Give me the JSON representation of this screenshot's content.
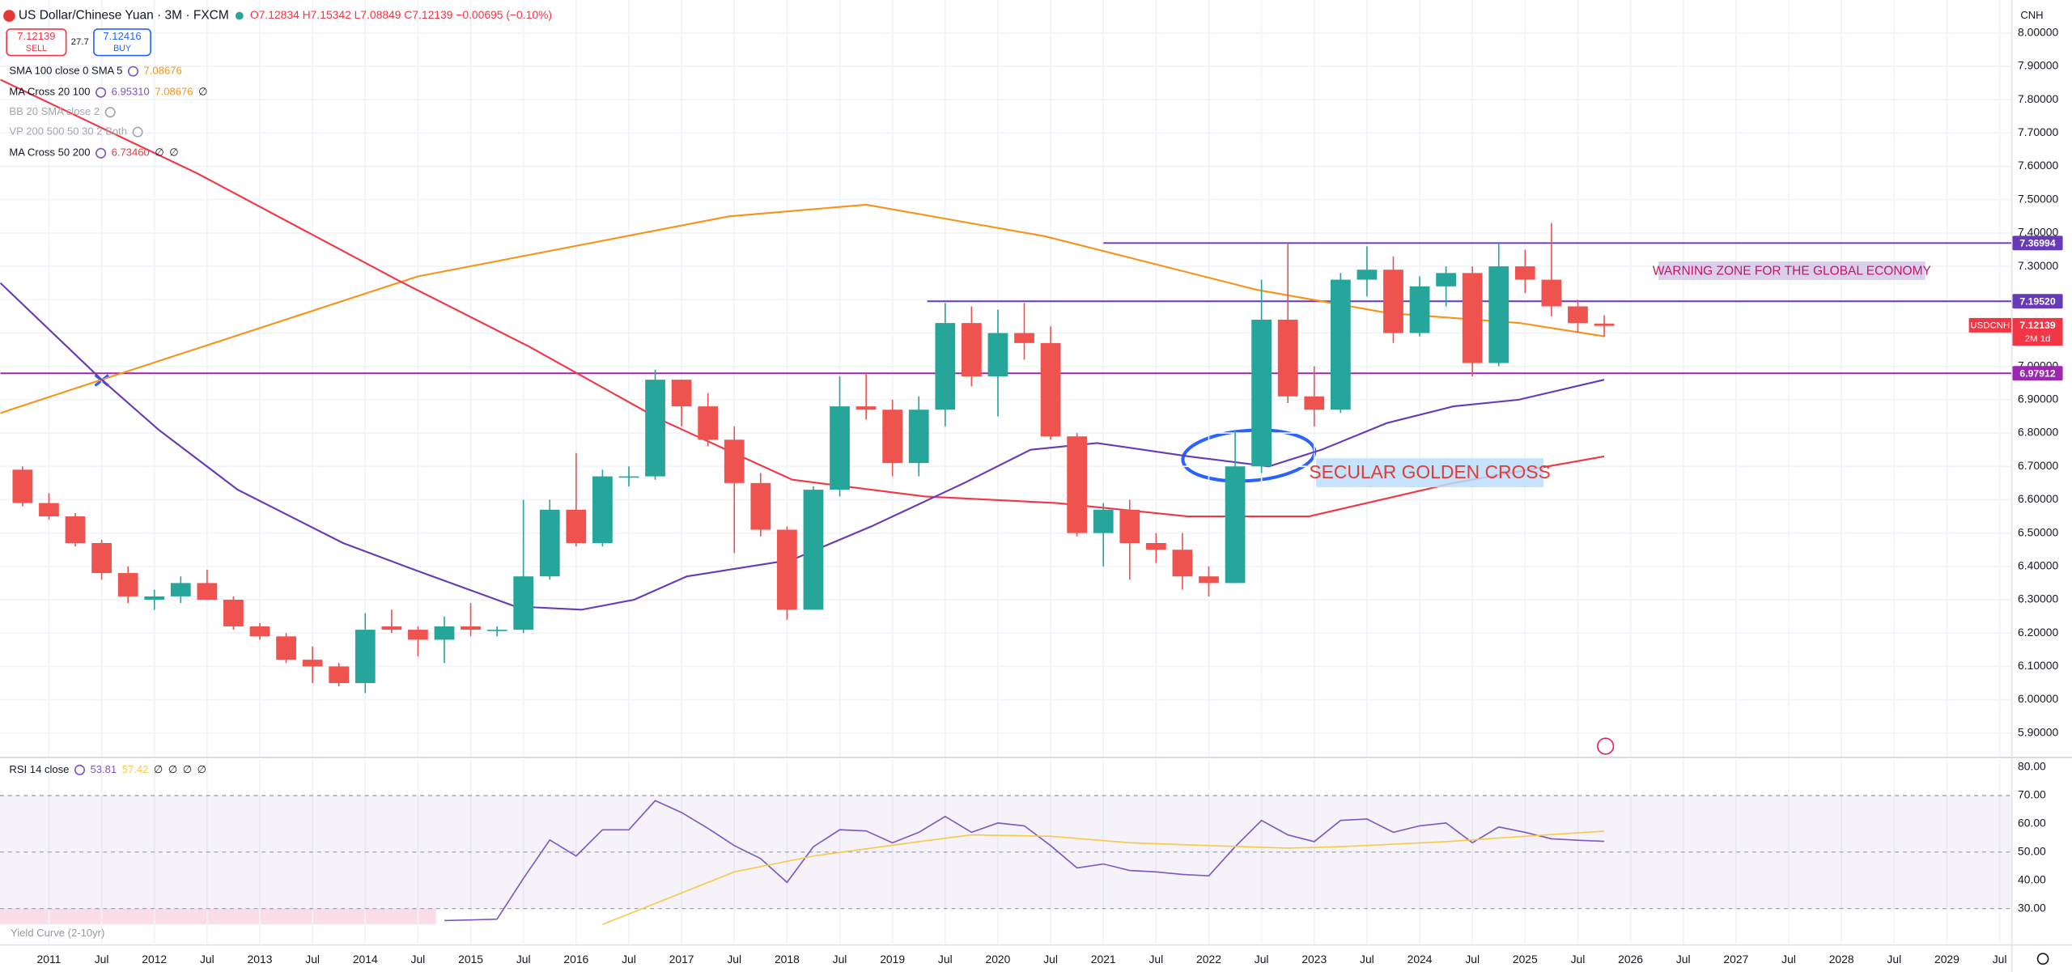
{
  "header": {
    "symbol": "US Dollar/Chinese Yuan · 3M · FXCM",
    "quote": "O7.12834 H7.15342 L7.08849 C7.12139 −0.00695 (−0.10%)",
    "sell_price": "7.12139",
    "sell": "SELL",
    "spread": "27.7",
    "buy_price": "7.12416",
    "buy": "BUY",
    "currency": "CNH"
  },
  "indicators": [
    {
      "name": "SMA 100 close 0 SMA 5",
      "values": [
        "7.08676"
      ],
      "colors": [
        "#f7931a"
      ]
    },
    {
      "name": "MA Cross 20 100",
      "values": [
        "6.95310",
        "7.08676",
        "∅"
      ],
      "colors": [
        "#7e57c2",
        "#f7931a",
        "#131722"
      ]
    },
    {
      "name": "BB 20 SMA close 2",
      "values": [],
      "colors": []
    },
    {
      "name": "VP 200 500 50 30 2 Both",
      "values": [],
      "colors": []
    },
    {
      "name": "MA Cross 50 200",
      "values": [
        "6.73460",
        "∅",
        "∅"
      ],
      "colors": [
        "#f23645",
        "#131722",
        "#131722"
      ]
    }
  ],
  "chart_data": [
    {
      "type": "candlestick",
      "x": [
        2010.75,
        2011.0,
        2011.25,
        2011.5,
        2011.75,
        2012.0,
        2012.25,
        2012.5,
        2012.75,
        2013.0,
        2013.25,
        2013.5,
        2013.75,
        2014.0,
        2014.25,
        2014.5,
        2014.75,
        2015.0,
        2015.25,
        2015.5,
        2015.75,
        2016.0,
        2016.25,
        2016.5,
        2016.75,
        2017.0,
        2017.25,
        2017.5,
        2017.75,
        2018.0,
        2018.25,
        2018.5,
        2018.75,
        2019.0,
        2019.25,
        2019.5,
        2019.75,
        2020.0,
        2020.25,
        2020.5,
        2020.75,
        2021.0,
        2021.25,
        2021.5,
        2021.75,
        2022.0,
        2022.25,
        2022.5,
        2022.75,
        2023.0,
        2023.25,
        2023.5,
        2023.75,
        2024.0,
        2024.25,
        2024.5,
        2024.75,
        2025.0,
        2025.25,
        2025.5,
        2025.75
      ],
      "open": [
        6.69,
        6.59,
        6.55,
        6.47,
        6.38,
        6.3,
        6.31,
        6.35,
        6.3,
        6.22,
        6.19,
        6.12,
        6.1,
        6.05,
        6.22,
        6.21,
        6.18,
        6.22,
        6.21,
        6.21,
        6.37,
        6.57,
        6.47,
        6.67,
        6.67,
        6.96,
        6.88,
        6.78,
        6.65,
        6.51,
        6.27,
        6.63,
        6.88,
        6.87,
        6.71,
        6.87,
        7.13,
        6.97,
        7.1,
        7.07,
        6.79,
        6.5,
        6.57,
        6.47,
        6.45,
        6.37,
        6.35,
        6.7,
        7.14,
        6.91,
        6.87,
        7.26,
        7.29,
        7.1,
        7.24,
        7.28,
        7.01,
        7.3,
        7.26,
        7.18,
        7.12834
      ],
      "high": [
        6.7,
        6.62,
        6.56,
        6.48,
        6.4,
        6.33,
        6.37,
        6.39,
        6.31,
        6.23,
        6.2,
        6.16,
        6.11,
        6.26,
        6.27,
        6.22,
        6.25,
        6.29,
        6.22,
        6.6,
        6.6,
        6.74,
        6.69,
        6.7,
        6.99,
        6.96,
        6.92,
        6.82,
        6.68,
        6.52,
        6.64,
        6.97,
        6.98,
        6.9,
        6.91,
        7.19,
        7.18,
        7.17,
        7.19,
        7.12,
        6.8,
        6.59,
        6.6,
        6.5,
        6.5,
        6.4,
        6.81,
        7.26,
        7.37,
        7.0,
        7.28,
        7.36,
        7.33,
        7.27,
        7.3,
        7.3,
        7.37,
        7.35,
        7.43,
        7.2,
        7.15342
      ],
      "low": [
        6.58,
        6.54,
        6.46,
        6.36,
        6.29,
        6.27,
        6.29,
        6.3,
        6.21,
        6.18,
        6.11,
        6.05,
        6.04,
        6.02,
        6.2,
        6.13,
        6.11,
        6.19,
        6.19,
        6.2,
        6.36,
        6.46,
        6.46,
        6.64,
        6.66,
        6.82,
        6.76,
        6.44,
        6.49,
        6.24,
        6.27,
        6.61,
        6.84,
        6.67,
        6.67,
        6.82,
        6.94,
        6.85,
        7.02,
        6.78,
        6.49,
        6.4,
        6.36,
        6.41,
        6.33,
        6.31,
        6.35,
        6.68,
        6.89,
        6.82,
        6.86,
        7.21,
        7.07,
        7.09,
        7.18,
        6.97,
        7.0,
        7.22,
        7.15,
        7.1,
        7.08849
      ],
      "close": [
        6.59,
        6.55,
        6.47,
        6.38,
        6.31,
        6.31,
        6.35,
        6.3,
        6.22,
        6.19,
        6.12,
        6.1,
        6.05,
        6.21,
        6.21,
        6.18,
        6.22,
        6.21,
        6.21,
        6.37,
        6.57,
        6.47,
        6.67,
        6.67,
        6.96,
        6.88,
        6.78,
        6.65,
        6.51,
        6.27,
        6.63,
        6.88,
        6.87,
        6.71,
        6.87,
        7.13,
        6.97,
        7.1,
        7.07,
        6.79,
        6.5,
        6.57,
        6.47,
        6.45,
        6.37,
        6.35,
        6.7,
        7.14,
        6.91,
        6.87,
        7.26,
        7.29,
        7.1,
        7.24,
        7.28,
        7.01,
        7.3,
        7.26,
        7.18,
        7.13,
        7.12139
      ],
      "colors": {
        "up": "#26a69a",
        "down": "#ef5350"
      },
      "lines": [
        {
          "color": "#f7931a",
          "x": [
            2010.54,
            2011.5,
            2014.5,
            2017.45,
            2018.75,
            2020.45,
            2022.45,
            2023.7,
            2024.95,
            2025.75
          ],
          "values": [
            6.86,
            6.96,
            7.27,
            7.45,
            7.485,
            7.39,
            7.23,
            7.16,
            7.13,
            7.09
          ]
        },
        {
          "color": "#f23645",
          "x": [
            2010.54,
            2012.4,
            2014.3,
            2015.55,
            2016.8,
            2018.05,
            2019.3,
            2020.56,
            2021.8,
            2022.95,
            2024.32,
            2025.75
          ],
          "values": [
            7.86,
            7.58,
            7.26,
            7.06,
            6.84,
            6.66,
            6.61,
            6.59,
            6.55,
            6.55,
            6.65,
            6.73
          ]
        },
        {
          "color": "#673ab7",
          "x": [
            2010.54,
            2011.5,
            2012.04,
            2012.79,
            2013.79,
            2014.55,
            2015.42,
            2016.05,
            2016.55,
            2017.05,
            2018.05,
            2018.8,
            2019.68,
            2020.31,
            2020.94,
            2021.81,
            2022.57,
            2023.07,
            2023.69,
            2024.32,
            2024.94,
            2025.75
          ],
          "values": [
            7.25,
            6.96,
            6.81,
            6.63,
            6.47,
            6.38,
            6.28,
            6.27,
            6.3,
            6.37,
            6.42,
            6.52,
            6.65,
            6.75,
            6.77,
            6.73,
            6.7,
            6.75,
            6.83,
            6.88,
            6.9,
            6.96
          ]
        }
      ],
      "hlines": [
        {
          "value": 7.36994,
          "label": "7.36994",
          "from": 2021.0,
          "color": "#673ab7"
        },
        {
          "value": 7.1952,
          "label": "7.19520",
          "from": 2019.33,
          "color": "#673ab7"
        },
        {
          "value": 6.97912,
          "label": "6.97912",
          "from": 2010.54,
          "color": "#9c27b0"
        }
      ],
      "last_price": {
        "symbol": "USDCNH",
        "value": "7.12139",
        "countdown": "2M 1d",
        "color": "#f23645"
      },
      "annotations": [
        "WARNING ZONE FOR THE GLOBAL ECONOMY",
        "SECULAR GOLDEN CROSS"
      ],
      "xlim": [
        2010.536,
        2029.61
      ],
      "ylim": [
        5.829,
        8.099
      ],
      "xticks": [
        2011,
        {
          "value": 2011.5,
          "label": "Jul"
        },
        2012,
        {
          "value": 2012.5,
          "label": "Jul"
        },
        2013,
        {
          "value": 2013.5,
          "label": "Jul"
        },
        2014,
        {
          "value": 2014.5,
          "label": "Jul"
        },
        2015,
        {
          "value": 2015.5,
          "label": "Jul"
        },
        2016,
        {
          "value": 2016.5,
          "label": "Jul"
        },
        2017,
        {
          "value": 2017.5,
          "label": "Jul"
        },
        2018,
        {
          "value": 2018.5,
          "label": "Jul"
        },
        2019,
        {
          "value": 2019.5,
          "label": "Jul"
        },
        2020,
        {
          "value": 2020.5,
          "label": "Jul"
        },
        2021,
        {
          "value": 2021.5,
          "label": "Jul"
        },
        2022,
        {
          "value": 2022.5,
          "label": "Jul"
        },
        2023,
        {
          "value": 2023.5,
          "label": "Jul"
        },
        2024,
        {
          "value": 2024.5,
          "label": "Jul"
        },
        2025,
        {
          "value": 2025.5,
          "label": "Jul"
        },
        2026,
        {
          "value": 2026.5,
          "label": "Jul"
        },
        2027,
        {
          "value": 2027.5,
          "label": "Jul"
        },
        2028,
        {
          "value": 2028.5,
          "label": "Jul"
        },
        2029,
        {
          "value": 2029.5,
          "label": "Jul"
        }
      ],
      "yticks": [
        {
          "value": 5.9,
          "label": "5.90000"
        },
        {
          "value": 6.0,
          "label": "6.00000"
        },
        {
          "value": 6.1,
          "label": "6.10000"
        },
        {
          "value": 6.2,
          "label": "6.20000"
        },
        {
          "value": 6.3,
          "label": "6.30000"
        },
        {
          "value": 6.4,
          "label": "6.40000"
        },
        {
          "value": 6.5,
          "label": "6.50000"
        },
        {
          "value": 6.6,
          "label": "6.60000"
        },
        {
          "value": 6.7,
          "label": "6.70000"
        },
        {
          "value": 6.8,
          "label": "6.80000"
        },
        {
          "value": 6.9,
          "label": "6.90000"
        },
        {
          "value": 7.0,
          "label": "7.00000"
        },
        {
          "value": 7.1,
          "label": "7.10000"
        },
        {
          "value": 7.2,
          "label": "7.20000"
        },
        {
          "value": 7.3,
          "label": "7.30000"
        },
        {
          "value": 7.4,
          "label": "7.40000"
        },
        {
          "value": 7.5,
          "label": "7.50000"
        },
        {
          "value": 7.6,
          "label": "7.60000"
        },
        {
          "value": 7.7,
          "label": "7.70000"
        },
        {
          "value": 7.8,
          "label": "7.80000"
        },
        {
          "value": 7.9,
          "label": "7.90000"
        },
        {
          "value": 8.0,
          "label": "8.00000"
        }
      ],
      "grid": true
    },
    {
      "type": "line",
      "title": "RSI 14 close",
      "legend_values": [
        "53.81",
        "57.42",
        "∅",
        "∅",
        "∅",
        "∅"
      ],
      "legend_colors": [
        "#7e57c2",
        "#f7c948",
        "#131722",
        "#131722",
        "#131722",
        "#131722"
      ],
      "overlay_label": "Yield Curve (2-10yr)",
      "series": [
        {
          "color": "#7e57c2",
          "x": [
            2014.75,
            2015.0,
            2015.25,
            2015.5,
            2015.75,
            2016.0,
            2016.25,
            2016.5,
            2016.75,
            2017.0,
            2017.25,
            2017.5,
            2017.75,
            2018.0,
            2018.25,
            2018.5,
            2018.75,
            2019.0,
            2019.25,
            2019.5,
            2019.75,
            2020.0,
            2020.25,
            2020.5,
            2020.75,
            2021.0,
            2021.25,
            2021.5,
            2021.75,
            2022.0,
            2022.25,
            2022.5,
            2022.75,
            2023.0,
            2023.25,
            2023.5,
            2023.75,
            2024.0,
            2024.25,
            2024.5,
            2024.75,
            2025.0,
            2025.25,
            2025.5,
            2025.75
          ],
          "values": [
            25.8,
            26.0,
            26.3,
            40.7,
            54.3,
            48.6,
            57.9,
            57.9,
            68.2,
            64.0,
            58.4,
            52.3,
            47.7,
            39.3,
            51.9,
            57.9,
            57.5,
            53.3,
            57.0,
            62.6,
            57.0,
            60.3,
            59.3,
            52.3,
            44.4,
            45.8,
            43.5,
            43.0,
            42.1,
            41.6,
            51.9,
            61.2,
            56.1,
            53.7,
            61.2,
            61.7,
            57.0,
            59.3,
            60.3,
            53.3,
            58.9,
            57.0,
            54.7,
            54.2,
            53.81
          ]
        },
        {
          "color": "#f7c948",
          "x": [
            2016.25,
            2017.5,
            2018.25,
            2019.25,
            2019.75,
            2020.5,
            2021.25,
            2022.0,
            2022.75,
            2023.25,
            2024.25,
            2025.0,
            2025.75
          ],
          "values": [
            24.4,
            43.0,
            48.6,
            53.7,
            56.1,
            55.6,
            53.3,
            52.3,
            51.4,
            51.9,
            53.7,
            55.6,
            57.42
          ]
        }
      ],
      "levels": [
        70,
        50,
        30
      ],
      "ylim": [
        17.4,
        82.8
      ],
      "yticks": [
        {
          "value": 30,
          "label": "30.00"
        },
        {
          "value": 40,
          "label": "40.00"
        },
        {
          "value": 50,
          "label": "50.00"
        },
        {
          "value": 60,
          "label": "60.00"
        },
        {
          "value": 70,
          "label": "70.00"
        },
        {
          "value": 80,
          "label": "80.00"
        }
      ]
    }
  ]
}
